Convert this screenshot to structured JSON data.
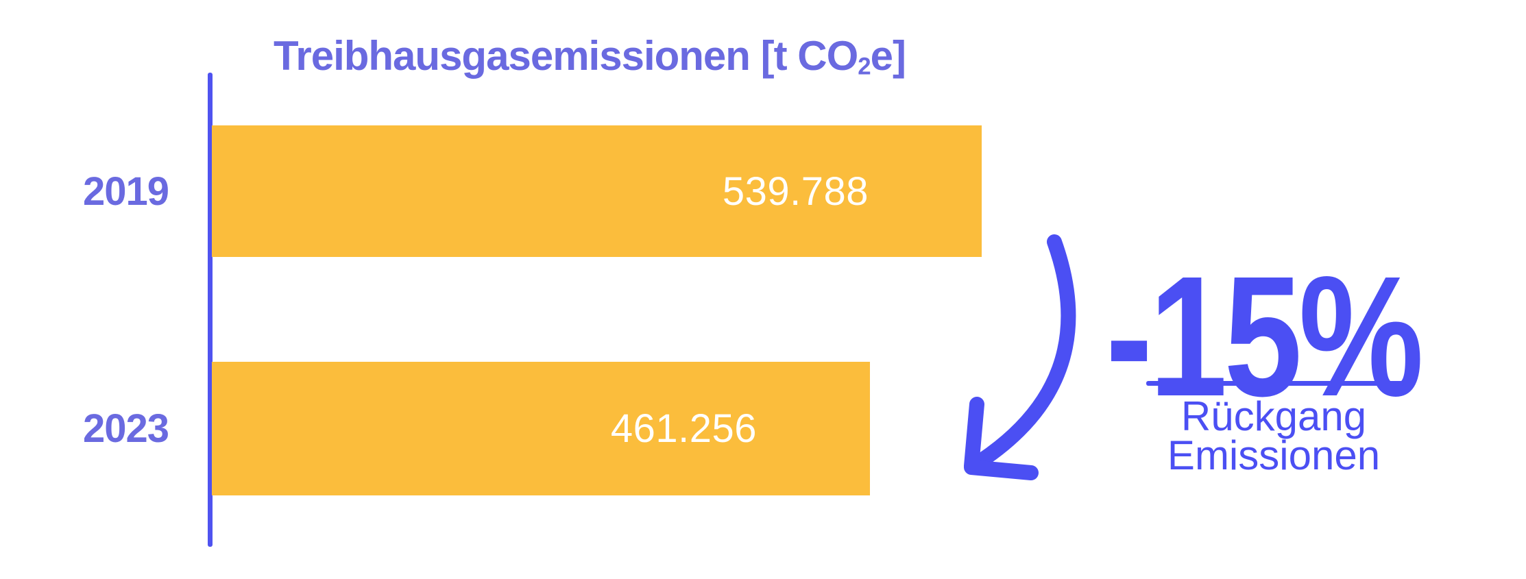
{
  "chart_data": {
    "type": "bar",
    "orientation": "horizontal",
    "title_parts": {
      "main": "Treibhausgasemissionen [t CO",
      "sub": "2",
      "tail": "e]"
    },
    "title_plain": "Treibhausgasemissionen [t CO2e]",
    "categories": [
      "2019",
      "2023"
    ],
    "values": [
      539788,
      461256
    ],
    "value_labels": [
      "539.788",
      "461.256"
    ],
    "unit": "t CO2e",
    "xlim": [
      0,
      540000
    ],
    "grid": false,
    "legend": false
  },
  "annotation": {
    "delta": "-15%",
    "caption_line1": "Rückgang",
    "caption_line2": "Emissionen",
    "icon": "curved-down-left-arrow-icon"
  },
  "colors": {
    "background": "#FFFFFF",
    "accent_blue": "#4B4FF3",
    "muted_blue": "#6A6AE0",
    "axis_blue": "#4F53F0",
    "bar_yellow": "#FBBD3C",
    "value_text": "#FFFFFF"
  }
}
